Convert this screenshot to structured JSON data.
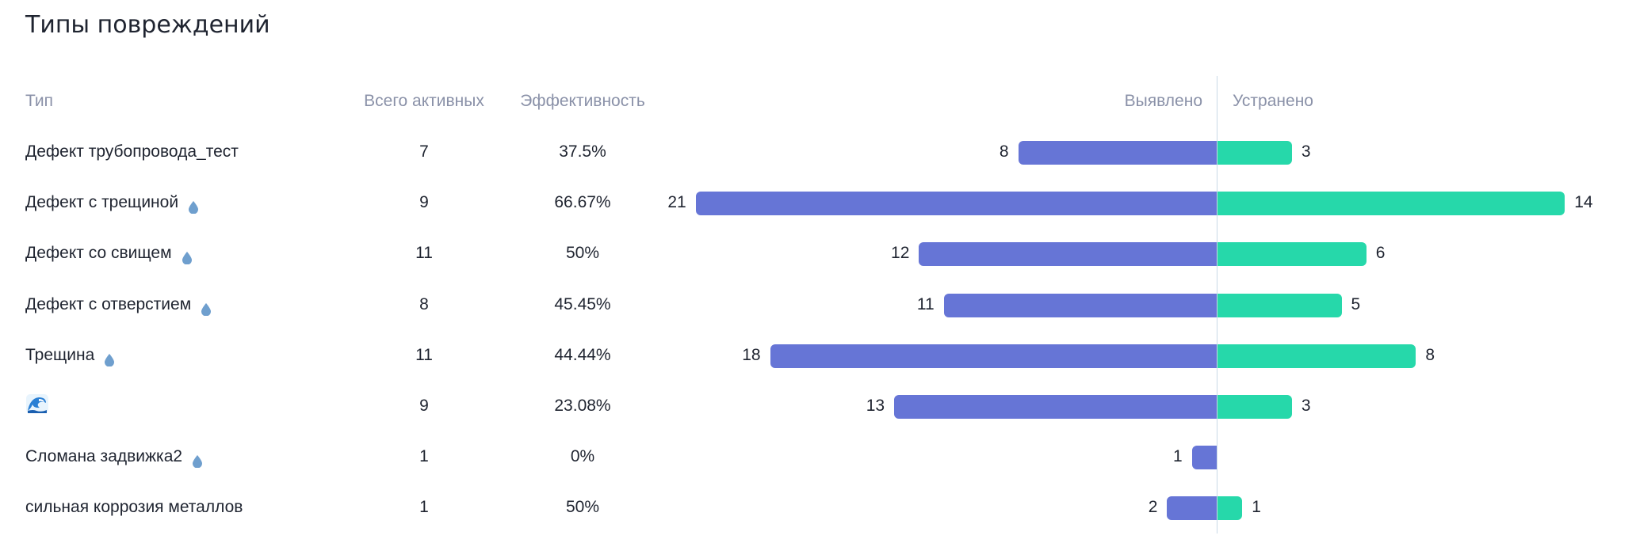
{
  "title": "Типы повреждений",
  "headers": {
    "type": "Тип",
    "active": "Всего активных",
    "efficiency": "Эффективность",
    "detected": "Выявлено",
    "fixed": "Устранено"
  },
  "colors": {
    "detected": "#6675d6",
    "fixed": "#26d8aa",
    "drop_icon": "#6f9fce"
  },
  "scale_max": 21,
  "rows": [
    {
      "type": "Дефект трубопровода_тест",
      "icon": "",
      "active": "7",
      "efficiency": "37.5%",
      "detected": 8,
      "fixed": 3
    },
    {
      "type": "Дефект с трещиной",
      "icon": "water-drop-icon",
      "active": "9",
      "efficiency": "66.67%",
      "detected": 21,
      "fixed": 14
    },
    {
      "type": "Дефект со свищем",
      "icon": "water-drop-icon",
      "active": "11",
      "efficiency": "50%",
      "detected": 12,
      "fixed": 6
    },
    {
      "type": "Дефект с отверстием",
      "icon": "water-drop-icon",
      "active": "8",
      "efficiency": "45.45%",
      "detected": 11,
      "fixed": 5
    },
    {
      "type": "Трещина",
      "icon": "water-drop-icon",
      "active": "11",
      "efficiency": "44.44%",
      "detected": 18,
      "fixed": 8
    },
    {
      "type": "",
      "icon": "water-wave-icon",
      "active": "9",
      "efficiency": "23.08%",
      "detected": 13,
      "fixed": 3
    },
    {
      "type": "Сломана задвижка2",
      "icon": "water-drop-icon",
      "active": "1",
      "efficiency": "0%",
      "detected": 1,
      "fixed": 0
    },
    {
      "type": "сильная коррозия металлов",
      "icon": "",
      "active": "1",
      "efficiency": "50%",
      "detected": 2,
      "fixed": 1
    }
  ]
}
